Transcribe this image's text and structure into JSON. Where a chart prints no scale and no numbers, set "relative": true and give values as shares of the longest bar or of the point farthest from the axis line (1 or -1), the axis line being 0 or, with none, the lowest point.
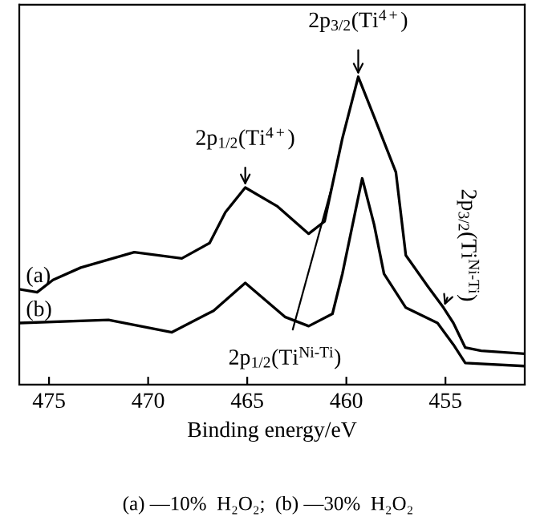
{
  "chart_data": {
    "type": "line",
    "relative": true,
    "xlabel": "Binding energy/eV",
    "xlim": [
      476.5,
      451.0
    ],
    "xticks": [
      475,
      470,
      465,
      460,
      455
    ],
    "tick_labels": "x",
    "grid": false,
    "legend": false,
    "marker": "none",
    "line_style": "solid",
    "series": [
      {
        "name": "(a)",
        "color": "#000000",
        "x": [
          476.5,
          475.6,
          474.8,
          473.4,
          470.7,
          468.3,
          466.9,
          466.1,
          465.1,
          463.5,
          461.9,
          461.1,
          460.7,
          460.2,
          459.4,
          458.6,
          457.5,
          457.0,
          455.9,
          455.1,
          454.6,
          454.0,
          453.2,
          451.0
        ],
        "values": [
          0.31,
          0.3,
          0.34,
          0.38,
          0.43,
          0.41,
          0.46,
          0.56,
          0.64,
          0.58,
          0.49,
          0.53,
          0.65,
          0.8,
          1.0,
          0.87,
          0.69,
          0.42,
          0.32,
          0.25,
          0.2,
          0.12,
          0.11,
          0.1
        ]
      },
      {
        "name": "(b)",
        "color": "#000000",
        "x": [
          476.5,
          472.0,
          468.8,
          466.7,
          465.1,
          463.1,
          461.9,
          460.7,
          460.2,
          459.2,
          458.6,
          458.1,
          457.0,
          455.4,
          454.6,
          454.0,
          451.0
        ],
        "values": [
          0.2,
          0.21,
          0.17,
          0.24,
          0.33,
          0.22,
          0.19,
          0.23,
          0.36,
          0.67,
          0.52,
          0.36,
          0.25,
          0.2,
          0.13,
          0.07,
          0.06
        ]
      }
    ],
    "annotations": [
      {
        "text": "2p$_{3/2}$(Ti$^{4+}$)",
        "x": 459.4,
        "y": 1.0
      },
      {
        "text": "2p$_{1/2}$(Ti$^{4+}$)",
        "x": 465.1,
        "y": 0.64
      },
      {
        "text": "2p$_{1/2}$(Ti$^{Ni‐Ti}$)",
        "x": 460.7,
        "y": 0.65
      },
      {
        "text": "2p$_{3/2}$(Ti$^{Ni‐Ti}$)",
        "x": 455.1,
        "y": 0.25
      },
      "(a) —10%  H₂O₂;  (b) —30%  H₂O₂"
    ]
  }
}
